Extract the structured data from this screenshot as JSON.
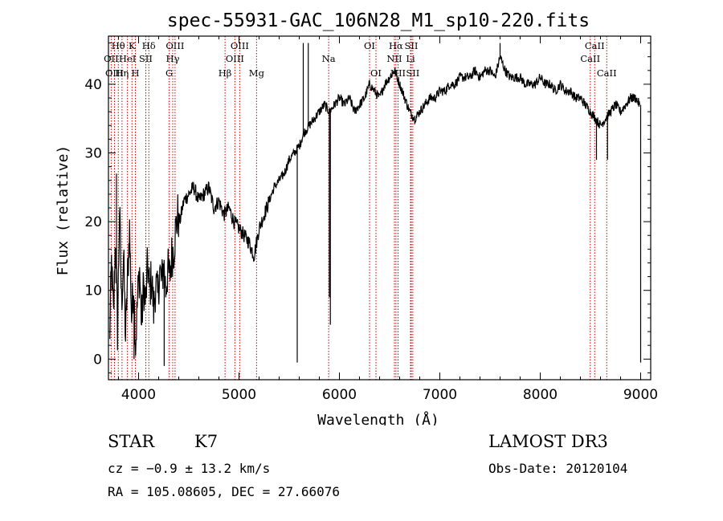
{
  "chart_data": {
    "type": "line",
    "title": "spec-55931-GAC_106N28_M1_sp10-220.fits",
    "xlabel": "Wavelength (Å)",
    "ylabel": "Flux (relative)",
    "xlim": [
      3700,
      9100
    ],
    "ylim": [
      -3,
      47
    ],
    "xticks": [
      4000,
      5000,
      6000,
      7000,
      8000,
      9000
    ],
    "yticks": [
      0,
      10,
      20,
      30,
      40
    ],
    "xtick_labels": [
      "4000",
      "5000",
      "6000",
      "7000",
      "8000",
      "9000"
    ],
    "ytick_labels": [
      "0",
      "10",
      "20",
      "30",
      "40"
    ],
    "series": [
      {
        "name": "flux",
        "x": [
          3710,
          3730,
          3750,
          3770,
          3790,
          3810,
          3830,
          3850,
          3870,
          3890,
          3910,
          3930,
          3950,
          3970,
          3990,
          4010,
          4030,
          4050,
          4070,
          4090,
          4110,
          4130,
          4150,
          4170,
          4190,
          4210,
          4230,
          4250,
          4270,
          4290,
          4310,
          4330,
          4350,
          4370,
          4390,
          4410,
          4450,
          4500,
          4550,
          4600,
          4650,
          4700,
          4750,
          4800,
          4850,
          4900,
          4950,
          5000,
          5050,
          5100,
          5150,
          5200,
          5250,
          5300,
          5350,
          5400,
          5450,
          5500,
          5550,
          5600,
          5650,
          5700,
          5750,
          5800,
          5850,
          5900,
          5950,
          6000,
          6050,
          6100,
          6150,
          6200,
          6250,
          6300,
          6350,
          6400,
          6450,
          6500,
          6550,
          6600,
          6650,
          6700,
          6750,
          6800,
          6850,
          6900,
          6950,
          7000,
          7050,
          7100,
          7150,
          7200,
          7250,
          7300,
          7350,
          7400,
          7450,
          7500,
          7550,
          7600,
          7650,
          7700,
          7750,
          7800,
          7850,
          7900,
          7950,
          8000,
          8050,
          8100,
          8150,
          8200,
          8250,
          8300,
          8350,
          8400,
          8450,
          8500,
          8550,
          8600,
          8650,
          8700,
          8750,
          8800,
          8850,
          8900,
          8950,
          8990
        ],
        "y": [
          2,
          14,
          6,
          18,
          4,
          22,
          8,
          15,
          3,
          12,
          19,
          6,
          11,
          2,
          9,
          13,
          5,
          11,
          8,
          14,
          10,
          12,
          7,
          11,
          9,
          13,
          11,
          14,
          10,
          13,
          12,
          15,
          16,
          19,
          21,
          20,
          23,
          24,
          25,
          23,
          24,
          25,
          22,
          23,
          21,
          22,
          20,
          19,
          18,
          17,
          15,
          19,
          21,
          23,
          25,
          26,
          27,
          29,
          30,
          31,
          33,
          34,
          35,
          36,
          37,
          36,
          37,
          38,
          37,
          38,
          36,
          37,
          38,
          40,
          39,
          38,
          40,
          41,
          42,
          40,
          38,
          36,
          35,
          36,
          37,
          38,
          38,
          39,
          39,
          40,
          40,
          41,
          41,
          41,
          42,
          41,
          42,
          42,
          41,
          44,
          42,
          41,
          41,
          41,
          40,
          40,
          40,
          41,
          40,
          40,
          39,
          40,
          39,
          39,
          38,
          38,
          37,
          36,
          35,
          34,
          35,
          36,
          37,
          36,
          37,
          38,
          38,
          37
        ]
      }
    ],
    "spikes": [
      {
        "x": 3780,
        "y": 27
      },
      {
        "x": 3955,
        "y": 0
      },
      {
        "x": 4255,
        "y": -1
      },
      {
        "x": 5580,
        "y": -0.5
      },
      {
        "x": 5640,
        "y": 46
      },
      {
        "x": 5690,
        "y": 46
      },
      {
        "x": 5900,
        "y": 9
      },
      {
        "x": 5910,
        "y": 5
      },
      {
        "x": 7600,
        "y": 46
      },
      {
        "x": 8560,
        "y": 29
      },
      {
        "x": 8670,
        "y": 29
      },
      {
        "x": 9000,
        "y": -0.5
      }
    ],
    "lines": [
      {
        "label": "Hθ",
        "x": 3798,
        "row": 1
      },
      {
        "label": "OII",
        "x": 3727,
        "row": 2
      },
      {
        "label": "OIII",
        "x": 3760,
        "row": 3
      },
      {
        "label": "K",
        "x": 3934,
        "row": 1
      },
      {
        "label": "HeI",
        "x": 3889,
        "row": 2
      },
      {
        "label": "Hη",
        "x": 3835,
        "row": 3
      },
      {
        "label": "Hδ",
        "x": 4102,
        "row": 1
      },
      {
        "label": "SII",
        "x": 4072,
        "row": 2
      },
      {
        "label": "H",
        "x": 3968,
        "row": 3
      },
      {
        "label": "OIII",
        "x": 4363,
        "row": 1
      },
      {
        "label": "Hγ",
        "x": 4340,
        "row": 2
      },
      {
        "label": "G",
        "x": 4305,
        "row": 3
      },
      {
        "label": "OIII",
        "x": 5007,
        "row": 1
      },
      {
        "label": "OIII",
        "x": 4959,
        "row": 2
      },
      {
        "label": "Hβ",
        "x": 4861,
        "row": 3
      },
      {
        "label": "Mg",
        "x": 5175,
        "row": 3
      },
      {
        "label": "Na",
        "x": 5893,
        "row": 2
      },
      {
        "label": "OI",
        "x": 6300,
        "row": 1
      },
      {
        "label": "OI",
        "x": 6364,
        "row": 3
      },
      {
        "label": "Hα",
        "x": 6563,
        "row": 1
      },
      {
        "label": "NII",
        "x": 6548,
        "row": 2
      },
      {
        "label": "NII",
        "x": 6584,
        "row": 3
      },
      {
        "label": "SII",
        "x": 6716,
        "row": 1
      },
      {
        "label": "Li",
        "x": 6708,
        "row": 2
      },
      {
        "label": "SII",
        "x": 6731,
        "row": 3
      },
      {
        "label": "CaII",
        "x": 8542,
        "row": 1
      },
      {
        "label": "CaII",
        "x": 8498,
        "row": 2
      },
      {
        "label": "CaII",
        "x": 8662,
        "row": 3
      }
    ],
    "colors": {
      "spectrum": "#000000",
      "line_markers": "#cc0000",
      "axes": "#000000"
    }
  },
  "info": {
    "object_type": "STAR",
    "subclass": "K7",
    "survey": "LAMOST DR3",
    "cz_text": "cz = −0.9 ± 13.2 km/s",
    "obs_date_text": "Obs-Date: 20120104",
    "radec_text": "RA = 105.08605, DEC =  27.66076"
  }
}
